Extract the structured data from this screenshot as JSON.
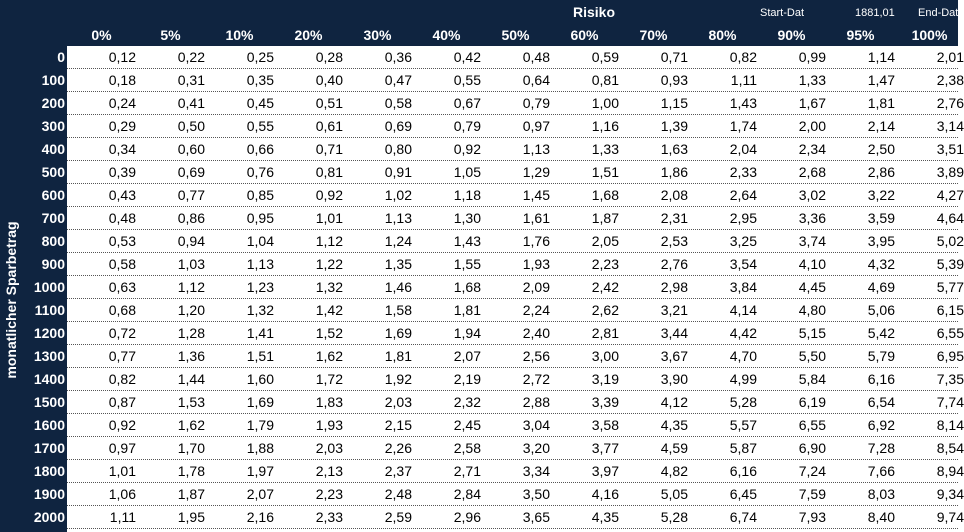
{
  "sheet": {
    "risk_label": "Risiko",
    "start_label": "Start-Dat",
    "start_value": "1881,01",
    "end_label": "End-Dat",
    "side_label": "monatlicher Sparbetrag"
  },
  "columns": [
    "0%",
    "5%",
    "10%",
    "20%",
    "30%",
    "40%",
    "50%",
    "60%",
    "70%",
    "80%",
    "90%",
    "95%",
    "100%"
  ],
  "rows": [
    {
      "label": "0",
      "values": [
        "0,12",
        "0,22",
        "0,25",
        "0,28",
        "0,36",
        "0,42",
        "0,48",
        "0,59",
        "0,71",
        "0,82",
        "0,99",
        "1,14",
        "2,01"
      ]
    },
    {
      "label": "100",
      "values": [
        "0,18",
        "0,31",
        "0,35",
        "0,40",
        "0,47",
        "0,55",
        "0,64",
        "0,81",
        "0,93",
        "1,11",
        "1,33",
        "1,47",
        "2,38"
      ]
    },
    {
      "label": "200",
      "values": [
        "0,24",
        "0,41",
        "0,45",
        "0,51",
        "0,58",
        "0,67",
        "0,79",
        "1,00",
        "1,15",
        "1,43",
        "1,67",
        "1,81",
        "2,76"
      ]
    },
    {
      "label": "300",
      "values": [
        "0,29",
        "0,50",
        "0,55",
        "0,61",
        "0,69",
        "0,79",
        "0,97",
        "1,16",
        "1,39",
        "1,74",
        "2,00",
        "2,14",
        "3,14"
      ]
    },
    {
      "label": "400",
      "values": [
        "0,34",
        "0,60",
        "0,66",
        "0,71",
        "0,80",
        "0,92",
        "1,13",
        "1,33",
        "1,63",
        "2,04",
        "2,34",
        "2,50",
        "3,51"
      ]
    },
    {
      "label": "500",
      "values": [
        "0,39",
        "0,69",
        "0,76",
        "0,81",
        "0,91",
        "1,05",
        "1,29",
        "1,51",
        "1,86",
        "2,33",
        "2,68",
        "2,86",
        "3,89"
      ]
    },
    {
      "label": "600",
      "values": [
        "0,43",
        "0,77",
        "0,85",
        "0,92",
        "1,02",
        "1,18",
        "1,45",
        "1,68",
        "2,08",
        "2,64",
        "3,02",
        "3,22",
        "4,27"
      ]
    },
    {
      "label": "700",
      "values": [
        "0,48",
        "0,86",
        "0,95",
        "1,01",
        "1,13",
        "1,30",
        "1,61",
        "1,87",
        "2,31",
        "2,95",
        "3,36",
        "3,59",
        "4,64"
      ]
    },
    {
      "label": "800",
      "values": [
        "0,53",
        "0,94",
        "1,04",
        "1,12",
        "1,24",
        "1,43",
        "1,76",
        "2,05",
        "2,53",
        "3,25",
        "3,74",
        "3,95",
        "5,02"
      ]
    },
    {
      "label": "900",
      "values": [
        "0,58",
        "1,03",
        "1,13",
        "1,22",
        "1,35",
        "1,55",
        "1,93",
        "2,23",
        "2,76",
        "3,54",
        "4,10",
        "4,32",
        "5,39"
      ]
    },
    {
      "label": "1000",
      "values": [
        "0,63",
        "1,12",
        "1,23",
        "1,32",
        "1,46",
        "1,68",
        "2,09",
        "2,42",
        "2,98",
        "3,84",
        "4,45",
        "4,69",
        "5,77"
      ]
    },
    {
      "label": "1100",
      "values": [
        "0,68",
        "1,20",
        "1,32",
        "1,42",
        "1,58",
        "1,81",
        "2,24",
        "2,62",
        "3,21",
        "4,14",
        "4,80",
        "5,06",
        "6,15"
      ]
    },
    {
      "label": "1200",
      "values": [
        "0,72",
        "1,28",
        "1,41",
        "1,52",
        "1,69",
        "1,94",
        "2,40",
        "2,81",
        "3,44",
        "4,42",
        "5,15",
        "5,42",
        "6,55"
      ]
    },
    {
      "label": "1300",
      "values": [
        "0,77",
        "1,36",
        "1,51",
        "1,62",
        "1,81",
        "2,07",
        "2,56",
        "3,00",
        "3,67",
        "4,70",
        "5,50",
        "5,79",
        "6,95"
      ]
    },
    {
      "label": "1400",
      "values": [
        "0,82",
        "1,44",
        "1,60",
        "1,72",
        "1,92",
        "2,19",
        "2,72",
        "3,19",
        "3,90",
        "4,99",
        "5,84",
        "6,16",
        "7,35"
      ]
    },
    {
      "label": "1500",
      "values": [
        "0,87",
        "1,53",
        "1,69",
        "1,83",
        "2,03",
        "2,32",
        "2,88",
        "3,39",
        "4,12",
        "5,28",
        "6,19",
        "6,54",
        "7,74"
      ]
    },
    {
      "label": "1600",
      "values": [
        "0,92",
        "1,62",
        "1,79",
        "1,93",
        "2,15",
        "2,45",
        "3,04",
        "3,58",
        "4,35",
        "5,57",
        "6,55",
        "6,92",
        "8,14"
      ]
    },
    {
      "label": "1700",
      "values": [
        "0,97",
        "1,70",
        "1,88",
        "2,03",
        "2,26",
        "2,58",
        "3,20",
        "3,77",
        "4,59",
        "5,87",
        "6,90",
        "7,28",
        "8,54"
      ]
    },
    {
      "label": "1800",
      "values": [
        "1,01",
        "1,78",
        "1,97",
        "2,13",
        "2,37",
        "2,71",
        "3,34",
        "3,97",
        "4,82",
        "6,16",
        "7,24",
        "7,66",
        "8,94"
      ]
    },
    {
      "label": "1900",
      "values": [
        "1,06",
        "1,87",
        "2,07",
        "2,23",
        "2,48",
        "2,84",
        "3,50",
        "4,16",
        "5,05",
        "6,45",
        "7,59",
        "8,03",
        "9,34"
      ]
    },
    {
      "label": "2000",
      "values": [
        "1,11",
        "1,95",
        "2,16",
        "2,33",
        "2,59",
        "2,96",
        "3,65",
        "4,35",
        "5,28",
        "6,74",
        "7,93",
        "8,40",
        "9,74"
      ]
    }
  ]
}
